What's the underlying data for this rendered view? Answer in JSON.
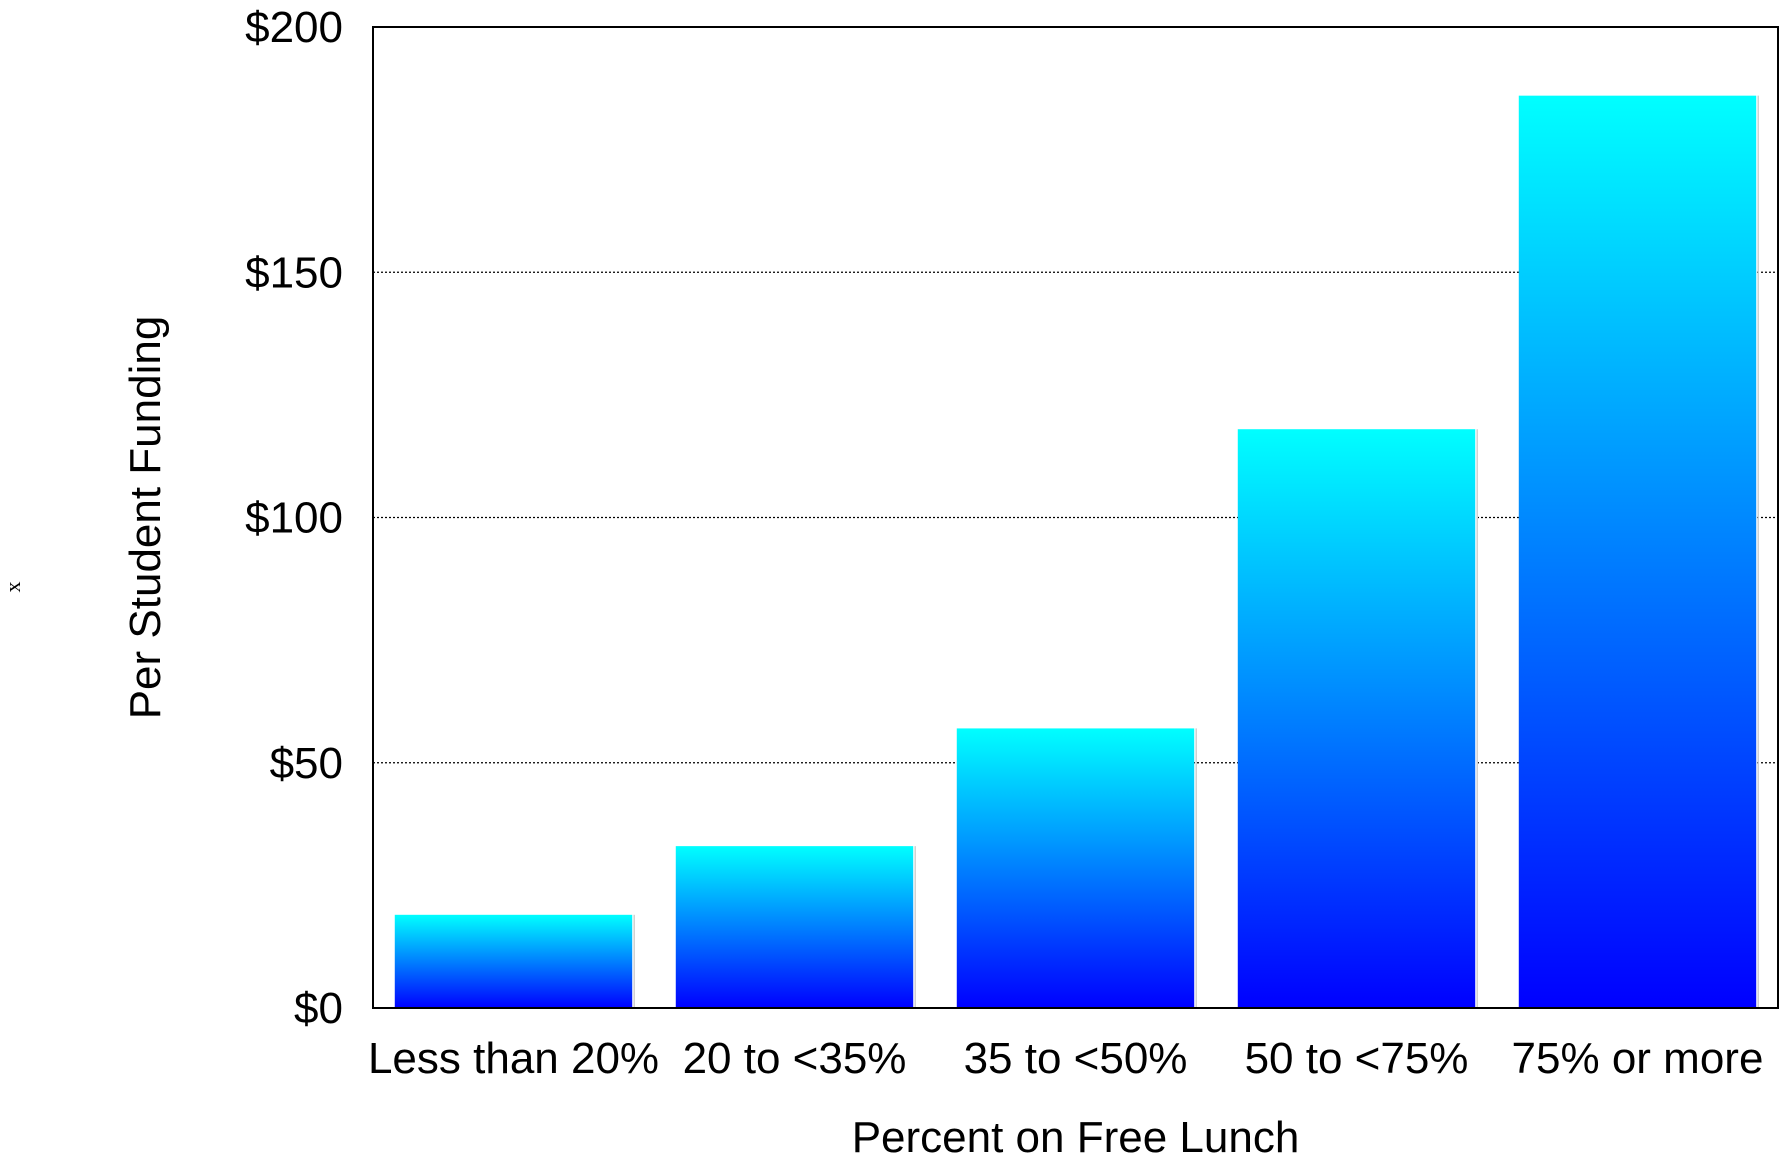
{
  "side_mark": "x",
  "chart_data": {
    "type": "bar",
    "categories": [
      "Less than 20%",
      "20 to <35%",
      "35 to <50%",
      "50 to <75%",
      "75% or more"
    ],
    "values": [
      19,
      33,
      57,
      118,
      186
    ],
    "title": "",
    "xlabel": "Percent on Free Lunch",
    "ylabel": "Per Student Funding",
    "ylim": [
      0,
      200
    ],
    "yticks": [
      0,
      50,
      100,
      150,
      200
    ],
    "ytick_labels": [
      "$0",
      "$50",
      "$100",
      "$150",
      "$200"
    ],
    "grid": "horizontal dotted",
    "legend": "none",
    "colors": {
      "bar_top": "#00ffff",
      "bar_bottom": "#0000ff",
      "axis": "#000000",
      "grid": "#000000"
    }
  }
}
